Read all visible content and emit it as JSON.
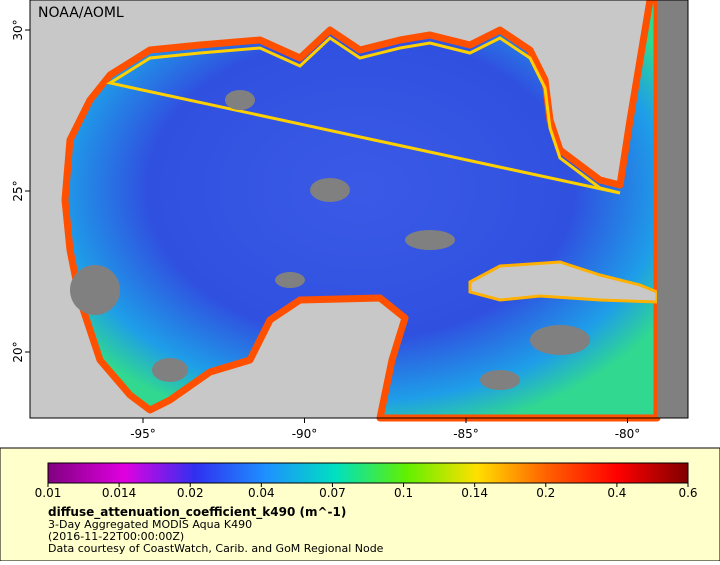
{
  "map": {
    "credit": "NOAA/AOML",
    "lon_ticks": [
      "-95°",
      "-90°",
      "-85°",
      "-80°"
    ],
    "lat_ticks": [
      "30°",
      "25°",
      "20°"
    ]
  },
  "colorbar": {
    "ticks": [
      "0.01",
      "0.014",
      "0.02",
      "0.04",
      "0.07",
      "0.1",
      "0.14",
      "0.2",
      "0.4",
      "0.6"
    ]
  },
  "caption": {
    "variable": "diffuse_attenuation_coefficient_k490 (m^-1)",
    "dataset": "3-Day Aggregated MODIS Aqua K490",
    "time": "(2016-11-22T00:00:00Z)",
    "source": "Data courtesy of CoastWatch, Carib. and GoM Regional Node"
  }
}
